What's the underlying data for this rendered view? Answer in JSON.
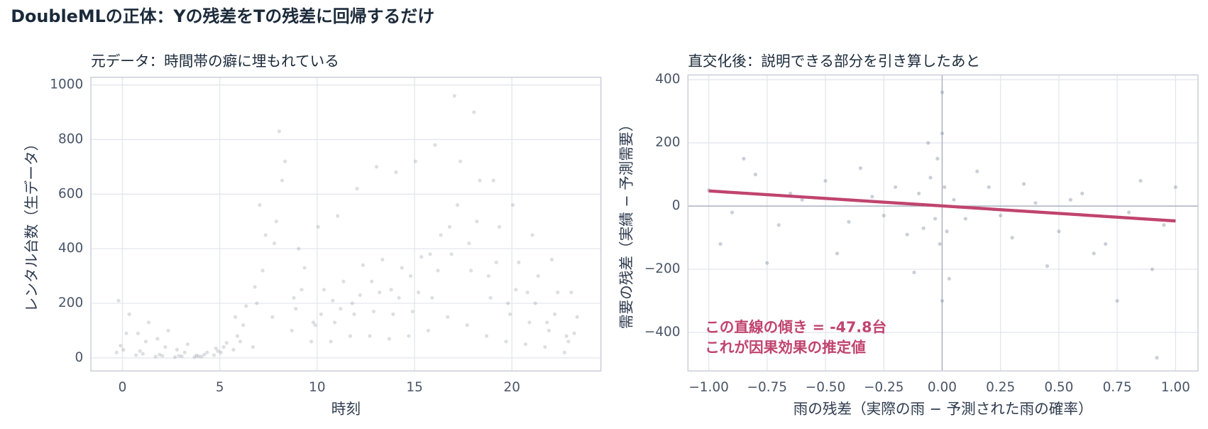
{
  "title": "DoubleMLの正体：Yの残差をTの残差に回帰するだけ",
  "chart_data": [
    {
      "type": "scatter",
      "title": "元データ：時間帯の癖に埋もれている",
      "xlabel": "時刻",
      "ylabel": "レンタル台数（生データ）",
      "color": "#1b2a3a",
      "grid": true,
      "xlim": [
        -1.62,
        24.57
      ],
      "ylim": [
        -48,
        1028
      ],
      "xticks": [
        0,
        5,
        10,
        15,
        20
      ],
      "yticks": [
        0,
        200,
        400,
        600,
        800,
        1000
      ],
      "x": [
        -0.3,
        -0.1,
        0.2,
        0.35,
        0.05,
        -0.2,
        0.7,
        0.9,
        1.2,
        1.35,
        1.05,
        0.8,
        1.7,
        1.9,
        2.2,
        2.35,
        2.05,
        1.8,
        2.7,
        2.9,
        3.2,
        3.35,
        3.05,
        2.8,
        3.7,
        3.9,
        4.2,
        4.35,
        4.05,
        3.8,
        4.7,
        4.9,
        5.2,
        5.35,
        5.05,
        4.8,
        5.7,
        5.9,
        6.2,
        6.35,
        6.05,
        5.8,
        6.7,
        6.9,
        7.2,
        7.35,
        7.05,
        6.8,
        7.7,
        7.9,
        8.2,
        8.35,
        8.05,
        7.8,
        8.7,
        8.9,
        9.2,
        9.35,
        9.05,
        8.8,
        9.7,
        9.9,
        10.2,
        10.35,
        10.05,
        9.8,
        10.7,
        10.9,
        11.2,
        11.35,
        11.05,
        10.8,
        11.7,
        11.9,
        12.2,
        12.35,
        12.05,
        11.8,
        12.7,
        12.9,
        13.2,
        13.35,
        13.05,
        12.8,
        13.7,
        13.9,
        14.2,
        14.35,
        14.05,
        13.8,
        14.7,
        14.9,
        15.2,
        15.35,
        15.05,
        14.8,
        15.7,
        15.9,
        16.2,
        16.35,
        16.05,
        15.8,
        16.7,
        16.9,
        17.2,
        17.35,
        17.05,
        16.8,
        17.7,
        17.9,
        18.2,
        18.35,
        18.05,
        17.8,
        18.7,
        18.9,
        19.2,
        19.35,
        19.05,
        18.8,
        19.7,
        19.9,
        20.2,
        20.35,
        20.05,
        19.8,
        20.7,
        20.9,
        21.2,
        21.35,
        21.05,
        20.8,
        21.7,
        21.9,
        22.2,
        22.35,
        22.05,
        21.8,
        22.7,
        22.9,
        23.2,
        23.35,
        23.05,
        22.8
      ],
      "y": [
        20,
        45,
        90,
        160,
        30,
        210,
        10,
        25,
        60,
        130,
        15,
        90,
        5,
        12,
        40,
        100,
        8,
        70,
        3,
        8,
        20,
        50,
        6,
        30,
        3,
        6,
        12,
        20,
        5,
        9,
        10,
        25,
        40,
        55,
        20,
        35,
        30,
        80,
        120,
        190,
        60,
        150,
        40,
        200,
        320,
        450,
        560,
        260,
        150,
        500,
        650,
        720,
        830,
        420,
        100,
        180,
        250,
        330,
        400,
        220,
        60,
        120,
        160,
        250,
        480,
        130,
        60,
        130,
        180,
        280,
        520,
        210,
        80,
        160,
        230,
        340,
        620,
        200,
        80,
        170,
        240,
        360,
        700,
        280,
        70,
        160,
        220,
        330,
        680,
        250,
        80,
        170,
        240,
        370,
        720,
        300,
        100,
        220,
        320,
        450,
        780,
        380,
        150,
        380,
        560,
        720,
        960,
        480,
        120,
        320,
        500,
        650,
        900,
        420,
        80,
        220,
        350,
        480,
        650,
        300,
        60,
        160,
        250,
        350,
        560,
        200,
        50,
        130,
        200,
        300,
        450,
        240,
        40,
        100,
        160,
        240,
        360,
        130,
        20,
        60,
        90,
        150,
        240,
        80
      ]
    },
    {
      "type": "scatter",
      "title": "直交化後：説明できる部分を引き算したあと",
      "xlabel": "雨の残差（実際の雨 − 予測された雨の確率）",
      "ylabel": "需要の残差（実績 − 予測需要）",
      "color": "#8a94a6",
      "grid": true,
      "xlim": [
        -1.089,
        1.096
      ],
      "ylim": [
        -522,
        415
      ],
      "xticks": [
        {
          "value": -1,
          "label": "−1.00"
        },
        {
          "value": -0.75,
          "label": "−0.75"
        },
        {
          "value": -0.5,
          "label": "−0.50"
        },
        {
          "value": -0.25,
          "label": "−0.25"
        },
        {
          "value": 0,
          "label": "0.00"
        },
        {
          "value": 0.25,
          "label": "0.25"
        },
        {
          "value": 0.5,
          "label": "0.50"
        },
        {
          "value": 0.75,
          "label": "0.75"
        },
        {
          "value": 1,
          "label": "1.00"
        }
      ],
      "yticks": [
        {
          "value": -400,
          "label": "−400"
        },
        {
          "value": -200,
          "label": "−200"
        },
        0,
        200,
        400
      ],
      "reference_lines": {
        "x": 0,
        "y": 0,
        "color": "#a9b1bf"
      },
      "x": [
        -0.02,
        -0.01,
        0,
        0,
        0.01,
        -0.03,
        -0.05,
        -0.08,
        -0.1,
        -0.15,
        -0.2,
        -0.25,
        -0.3,
        -0.4,
        -0.5,
        -0.6,
        -0.7,
        -0.8,
        -0.9,
        -1,
        -0.95,
        -0.85,
        -0.75,
        -0.65,
        -0.45,
        -0.35,
        0.02,
        0.05,
        0.1,
        0.2,
        0.3,
        0.4,
        0.5,
        0.6,
        0.7,
        0.8,
        0.9,
        1,
        0.95,
        0.85,
        0.75,
        0.65,
        0.55,
        0.45,
        0.35,
        0.25,
        0.15,
        0.92,
        0,
        -0.12,
        -0.06,
        0.03
      ],
      "y": [
        150,
        -120,
        230,
        -300,
        60,
        -40,
        90,
        -70,
        40,
        -90,
        60,
        -30,
        30,
        -50,
        80,
        20,
        -60,
        100,
        -20,
        50,
        -120,
        150,
        -180,
        40,
        -150,
        120,
        -80,
        20,
        -40,
        60,
        -100,
        10,
        -80,
        40,
        -120,
        -20,
        -200,
        60,
        -60,
        80,
        -300,
        -150,
        20,
        -190,
        70,
        -30,
        110,
        -480,
        360,
        -210,
        200,
        -230
      ],
      "fit": {
        "x": [
          -1,
          1
        ],
        "y": [
          48,
          -47
        ],
        "color": "#c0446e"
      },
      "annotation": [
        "この直線の傾き = -47.8台",
        "これが因果効果の推定値"
      ]
    }
  ]
}
